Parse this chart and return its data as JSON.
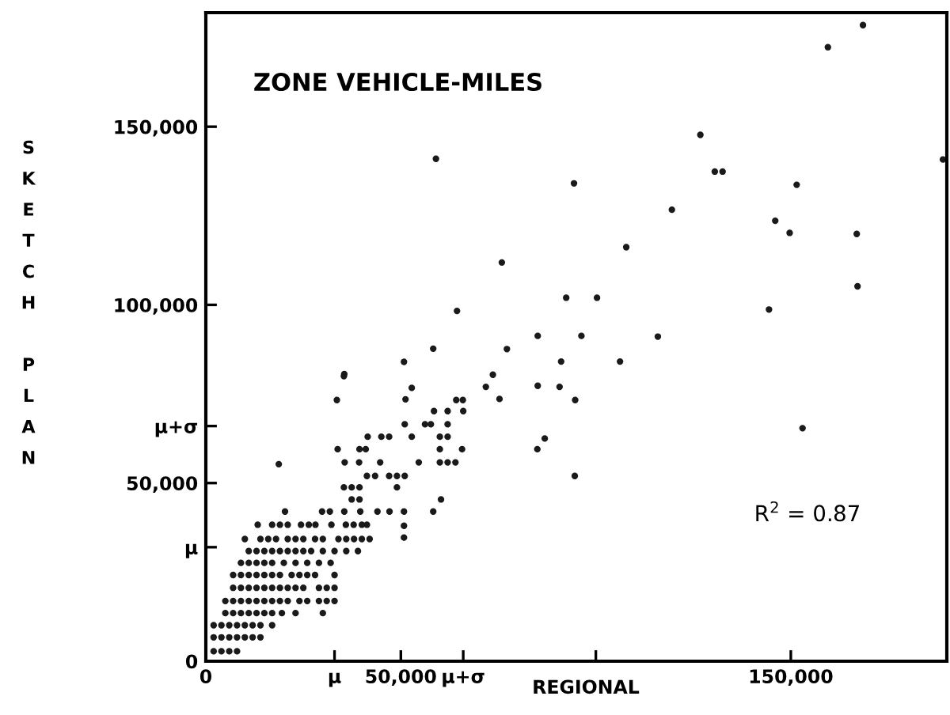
{
  "chart_data": {
    "type": "scatter",
    "title": "ZONE VEHICLE-MILES",
    "xlabel": "REGIONAL",
    "ylabel": "SKETCH PLAN",
    "annotations": [
      "R$^{2}$ = 0.87"
    ],
    "xlim": [
      0,
      190000
    ],
    "ylim": [
      0,
      182000
    ],
    "xticks": [
      {
        "value": 0,
        "label": "0"
      },
      {
        "value": 33000,
        "label": "μ"
      },
      {
        "value": 50000,
        "label": "50,000"
      },
      {
        "value": 66000,
        "label": "μ+σ"
      },
      {
        "value": 100000,
        "label": null
      },
      {
        "value": 150000,
        "label": "150,000"
      }
    ],
    "yticks": [
      {
        "value": 0,
        "label": "0"
      },
      {
        "value": 32000,
        "label": "μ"
      },
      {
        "value": 50000,
        "label": "50,000"
      },
      {
        "value": 66000,
        "label": "μ+σ"
      },
      {
        "value": 100000,
        "label": "100,000"
      },
      {
        "value": 150000,
        "label": "150,000"
      }
    ],
    "grid": false,
    "legend": false,
    "marker": "circle",
    "series": [
      {
        "color": "#1a1a1a",
        "x": [
          2000,
          4000,
          6000,
          8000,
          2000,
          4000,
          6000,
          8000,
          10000,
          12000,
          14000,
          2000,
          4000,
          6000,
          8000,
          10000,
          12000,
          14000,
          17000,
          5000,
          7000,
          9000,
          11000,
          13000,
          15000,
          17000,
          19500,
          23000,
          30000,
          5000,
          7000,
          9000,
          11000,
          13000,
          15000,
          17000,
          19000,
          21000,
          24000,
          26000,
          29000,
          31000,
          33000,
          7000,
          9000,
          11000,
          13000,
          15000,
          17000,
          19000,
          21000,
          23000,
          25000,
          29000,
          31000,
          33000,
          7000,
          9000,
          11000,
          13000,
          15000,
          17000,
          19000,
          22000,
          24000,
          26000,
          28000,
          33000,
          9000,
          11000,
          13000,
          15000,
          17000,
          20000,
          23000,
          26000,
          29000,
          32000,
          11000,
          13000,
          15000,
          17000,
          19000,
          21000,
          23000,
          25000,
          27000,
          30000,
          33000,
          36000,
          39000,
          10000,
          14000,
          16000,
          18000,
          21000,
          23000,
          25000,
          28000,
          30000,
          34000,
          36000,
          38000,
          40000,
          42000,
          50800,
          13300,
          17000,
          19000,
          21000,
          24400,
          26400,
          28100,
          32200,
          35900,
          37900,
          40000,
          41300,
          50800,
          20300,
          29800,
          31800,
          35500,
          39600,
          44000,
          47100,
          50800,
          58300,
          37400,
          39400,
          60300,
          35400,
          37400,
          39400,
          49000,
          41300,
          43400,
          47000,
          49000,
          51000,
          94600,
          18700,
          35600,
          39300,
          44700,
          54600,
          60000,
          62000,
          64000,
          33800,
          39400,
          41000,
          60000,
          65700,
          85000,
          41500,
          45000,
          47000,
          52800,
          60000,
          62000,
          86900,
          51000,
          56200,
          57700,
          62000,
          58500,
          62000,
          66000,
          33600,
          51200,
          64200,
          65900,
          75300,
          94700,
          52800,
          71800,
          85100,
          90700,
          35400,
          35500,
          73600,
          50800,
          91100,
          106200,
          58300,
          77200,
          85100,
          96300,
          115900,
          64400,
          144400,
          92400,
          100300,
          167100,
          75900,
          107800,
          166900,
          149700,
          146000,
          119500,
          151500,
          94400,
          130500,
          132500,
          126800,
          159500,
          168500,
          189000,
          59000,
          153000
        ],
        "values": [
          2800,
          2800,
          2800,
          2800,
          6700,
          6700,
          6700,
          6700,
          6700,
          6700,
          6700,
          10100,
          10100,
          10100,
          10100,
          10100,
          10100,
          10100,
          10100,
          13500,
          13500,
          13500,
          13500,
          13500,
          13500,
          13500,
          13500,
          13500,
          13500,
          16900,
          16900,
          16900,
          16900,
          16900,
          16900,
          16900,
          16900,
          16900,
          16900,
          16900,
          16900,
          16900,
          16900,
          20600,
          20600,
          20600,
          20600,
          20600,
          20600,
          20600,
          20600,
          20600,
          20600,
          20600,
          20600,
          20600,
          24200,
          24200,
          24200,
          24200,
          24200,
          24200,
          24200,
          24200,
          24200,
          24200,
          24200,
          24200,
          27600,
          27600,
          27600,
          27600,
          27600,
          27600,
          27600,
          27600,
          27600,
          27600,
          30900,
          30900,
          30900,
          30900,
          30900,
          30900,
          30900,
          30900,
          30900,
          30900,
          30900,
          30900,
          30900,
          34300,
          34300,
          34300,
          34300,
          34300,
          34300,
          34300,
          34300,
          34300,
          34300,
          34300,
          34300,
          34300,
          34300,
          34700,
          38300,
          38300,
          38300,
          38300,
          38300,
          38300,
          38300,
          38300,
          38300,
          38300,
          38300,
          38300,
          38000,
          42000,
          42000,
          42000,
          42000,
          42000,
          42000,
          42000,
          42000,
          42000,
          45400,
          45400,
          45400,
          48800,
          48800,
          48800,
          48800,
          52000,
          52000,
          52000,
          52000,
          52000,
          52000,
          55300,
          55800,
          55800,
          55800,
          55800,
          55800,
          55800,
          55800,
          59500,
          59500,
          59500,
          59500,
          59500,
          59500,
          63000,
          63000,
          63000,
          63000,
          63000,
          63000,
          62500,
          66500,
          66500,
          66500,
          66500,
          70200,
          70200,
          70200,
          73300,
          73500,
          73300,
          73300,
          73600,
          73300,
          76700,
          77000,
          77300,
          77000,
          80000,
          80600,
          80400,
          84000,
          84100,
          84100,
          87700,
          87600,
          91300,
          91300,
          91100,
          98300,
          98700,
          102000,
          102000,
          105200,
          111900,
          116200,
          119900,
          120200,
          123600,
          126700,
          133700,
          134100,
          137400,
          137400,
          147700,
          172300,
          178500,
          140800,
          141000,
          65400
        ]
      }
    ]
  }
}
